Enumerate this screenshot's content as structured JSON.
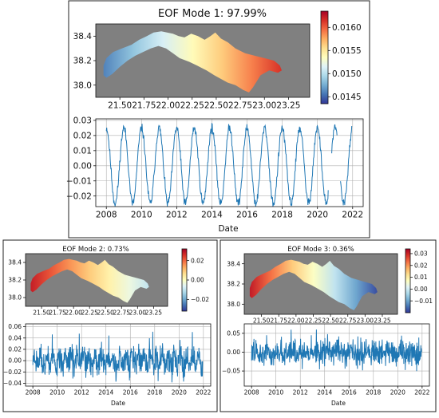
{
  "chart_data": [
    {
      "type": "heatmap",
      "panel": "top",
      "title": "EOF Mode 1: 97.99%",
      "x_ticks": [
        "21.50",
        "21.75",
        "22.00",
        "22.25",
        "22.50",
        "22.75",
        "23.00",
        "23.25"
      ],
      "x_tick_values": [
        21.5,
        21.75,
        22.0,
        22.25,
        22.5,
        22.75,
        23.0,
        23.25
      ],
      "xlim": [
        21.25,
        23.47
      ],
      "y_ticks": [
        "38.4",
        "38.2",
        "38.0"
      ],
      "y_tick_values": [
        38.4,
        38.2,
        38.0
      ],
      "ylim": [
        37.9,
        38.5
      ],
      "colorbar": {
        "ticks": [
          "0.0160",
          "0.0155",
          "0.0150",
          "0.0145"
        ],
        "tick_values": [
          0.016,
          0.0155,
          0.015,
          0.0145
        ],
        "range": [
          0.01435,
          0.01635
        ],
        "colormap": "RdYlBu_r"
      },
      "background_color": "#808080",
      "field": {
        "west_end": 0.0146,
        "east_end": 0.01615
      }
    },
    {
      "type": "line",
      "panel": "top",
      "x_ticks": [
        "2008",
        "2010",
        "2012",
        "2014",
        "2016",
        "2018",
        "2020",
        "2022"
      ],
      "x_tick_values": [
        2008,
        2010,
        2012,
        2014,
        2016,
        2018,
        2020,
        2022
      ],
      "xlim": [
        2007.4,
        2022.6
      ],
      "xlabel": "Date",
      "y_ticks": [
        "0.03",
        "0.02",
        "0.01",
        "0.00",
        "−0.01",
        "−0.02"
      ],
      "y_tick_values": [
        0.03,
        0.02,
        0.01,
        0.0,
        -0.01,
        -0.02
      ],
      "ylim": [
        -0.027,
        0.031
      ],
      "grid": true,
      "series": {
        "start": 2008.0,
        "end": 2021.95,
        "pattern": "annual_cycle",
        "amplitude": 0.025,
        "noise": 0.0015,
        "gaps": [
          [
            2020.62,
            2020.8
          ],
          [
            2021.12,
            2021.3
          ]
        ]
      }
    },
    {
      "type": "heatmap",
      "panel": "bottom-left",
      "title": "EOF Mode 2: 0.73%",
      "x_ticks": [
        "21.50",
        "21.75",
        "22.00",
        "22.25",
        "22.50",
        "22.75",
        "23.00",
        "23.25"
      ],
      "x_tick_values": [
        21.5,
        21.75,
        22.0,
        22.25,
        22.5,
        22.75,
        23.0,
        23.25
      ],
      "xlim": [
        21.25,
        23.47
      ],
      "y_ticks": [
        "38.4",
        "38.2",
        "38.0"
      ],
      "y_tick_values": [
        38.4,
        38.2,
        38.0
      ],
      "ylim": [
        37.9,
        38.5
      ],
      "colorbar": {
        "ticks": [
          "0.02",
          "0.00",
          "−0.02"
        ],
        "tick_values": [
          0.02,
          0.0,
          -0.02
        ],
        "range": [
          -0.032,
          0.032
        ],
        "colormap": "RdYlBu_r"
      },
      "background_color": "#808080",
      "field": {
        "west_end": 0.028,
        "east_end": -0.01
      }
    },
    {
      "type": "line",
      "panel": "bottom-left",
      "x_ticks": [
        "2008",
        "2010",
        "2012",
        "2014",
        "2016",
        "2018",
        "2020",
        "2022"
      ],
      "x_tick_values": [
        2008,
        2010,
        2012,
        2014,
        2016,
        2018,
        2020,
        2022
      ],
      "xlim": [
        2007.4,
        2022.6
      ],
      "xlabel": "Date",
      "y_ticks": [
        "0.06",
        "0.04",
        "0.02",
        "0.00",
        "−0.02",
        "−0.04"
      ],
      "y_tick_values": [
        0.06,
        0.04,
        0.02,
        0.0,
        -0.02,
        -0.04
      ],
      "ylim": [
        -0.045,
        0.065
      ],
      "grid": true,
      "series": {
        "start": 2008.0,
        "end": 2021.95,
        "pattern": "noisy_annual",
        "amplitude": 0.01,
        "noise": 0.012,
        "range_observed": [
          -0.04,
          0.06
        ]
      }
    },
    {
      "type": "heatmap",
      "panel": "bottom-right",
      "title": "EOF Mode 3: 0.36%",
      "x_ticks": [
        "21.50",
        "21.75",
        "22.00",
        "22.25",
        "22.50",
        "22.75",
        "23.00",
        "23.25"
      ],
      "x_tick_values": [
        21.5,
        21.75,
        22.0,
        22.25,
        22.5,
        22.75,
        23.0,
        23.25
      ],
      "xlim": [
        21.25,
        23.47
      ],
      "y_ticks": [
        "38.4",
        "38.2",
        "38.0"
      ],
      "y_tick_values": [
        38.4,
        38.2,
        38.0
      ],
      "ylim": [
        37.9,
        38.5
      ],
      "colorbar": {
        "ticks": [
          "0.03",
          "0.02",
          "0.01",
          "0.00",
          "−0.01"
        ],
        "tick_values": [
          0.03,
          0.02,
          0.01,
          0.0,
          -0.01
        ],
        "range": [
          -0.02,
          0.034
        ],
        "colormap": "RdYlBu_r"
      },
      "background_color": "#808080",
      "field": {
        "west_end": 0.031,
        "east_end": -0.018
      }
    },
    {
      "type": "line",
      "panel": "bottom-right",
      "x_ticks": [
        "2008",
        "2010",
        "2012",
        "2014",
        "2016",
        "2018",
        "2020",
        "2022"
      ],
      "x_tick_values": [
        2008,
        2010,
        2012,
        2014,
        2016,
        2018,
        2020,
        2022
      ],
      "xlim": [
        2007.4,
        2022.6
      ],
      "xlabel": "Date",
      "y_ticks": [
        "0.05",
        "0.00",
        "−0.05"
      ],
      "y_tick_values": [
        0.05,
        0.0,
        -0.05
      ],
      "ylim": [
        -0.09,
        0.075
      ],
      "grid": true,
      "series": {
        "start": 2008.0,
        "end": 2021.95,
        "pattern": "noise",
        "amplitude": 0.005,
        "noise": 0.016,
        "range_observed": [
          -0.08,
          0.06
        ]
      }
    }
  ]
}
